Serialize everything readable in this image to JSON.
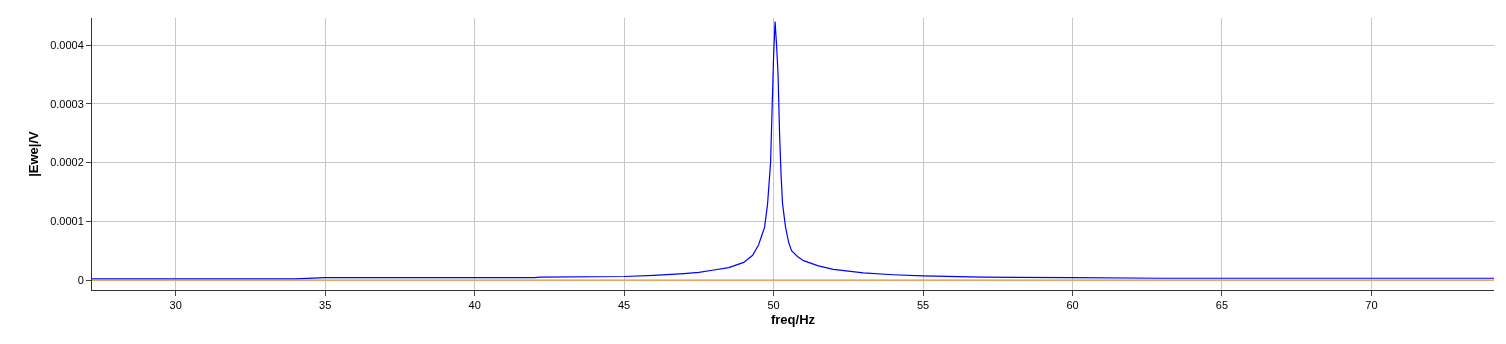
{
  "chart_data": {
    "type": "line",
    "xlabel": "freq/Hz",
    "ylabel": "|Ewe|/V",
    "xlim": [
      27.2,
      74.1
    ],
    "xticks": [
      30,
      35,
      40,
      45,
      50,
      55,
      60,
      65,
      70
    ],
    "ylim": [
      -1.7e-05,
      0.000446
    ],
    "yticks": [
      0,
      0.0001,
      0.0002,
      0.0003,
      0.0004
    ],
    "grid": true,
    "marker": "none",
    "line_style": "solid",
    "series": [
      {
        "color": "#0000ff",
        "x": [
          27.2,
          30,
          31,
          32,
          33,
          34,
          35,
          38,
          42,
          42.2,
          45,
          46,
          47,
          47.5,
          48,
          48.5,
          49,
          49.3,
          49.5,
          49.7,
          49.8,
          49.9,
          50,
          50.05,
          50.1,
          50.15,
          50.2,
          50.25,
          50.3,
          50.4,
          50.5,
          50.6,
          50.8,
          51,
          51.5,
          52,
          53,
          54,
          55,
          57,
          60,
          63,
          65,
          70,
          74.1
        ],
        "values": [
          2e-06,
          2e-06,
          2e-06,
          2e-06,
          2e-06,
          2e-06,
          4e-06,
          4e-06,
          4e-06,
          5e-06,
          6e-06,
          8e-06,
          1.1e-05,
          1.3e-05,
          1.7e-05,
          2.1e-05,
          3e-05,
          4.2e-05,
          6e-05,
          9e-05,
          0.00013,
          0.0002,
          0.00038,
          0.00044,
          0.0004,
          0.00035,
          0.00025,
          0.00018,
          0.00013,
          9e-05,
          6.5e-05,
          5e-05,
          4e-05,
          3.3e-05,
          2.4e-05,
          1.8e-05,
          1.2e-05,
          9e-06,
          7e-06,
          5e-06,
          4e-06,
          3e-06,
          3e-06,
          3e-06,
          3e-06
        ]
      },
      {
        "color": "#ff8c00",
        "x": [
          27.2,
          74.1
        ],
        "values": [
          0,
          0
        ]
      }
    ]
  }
}
